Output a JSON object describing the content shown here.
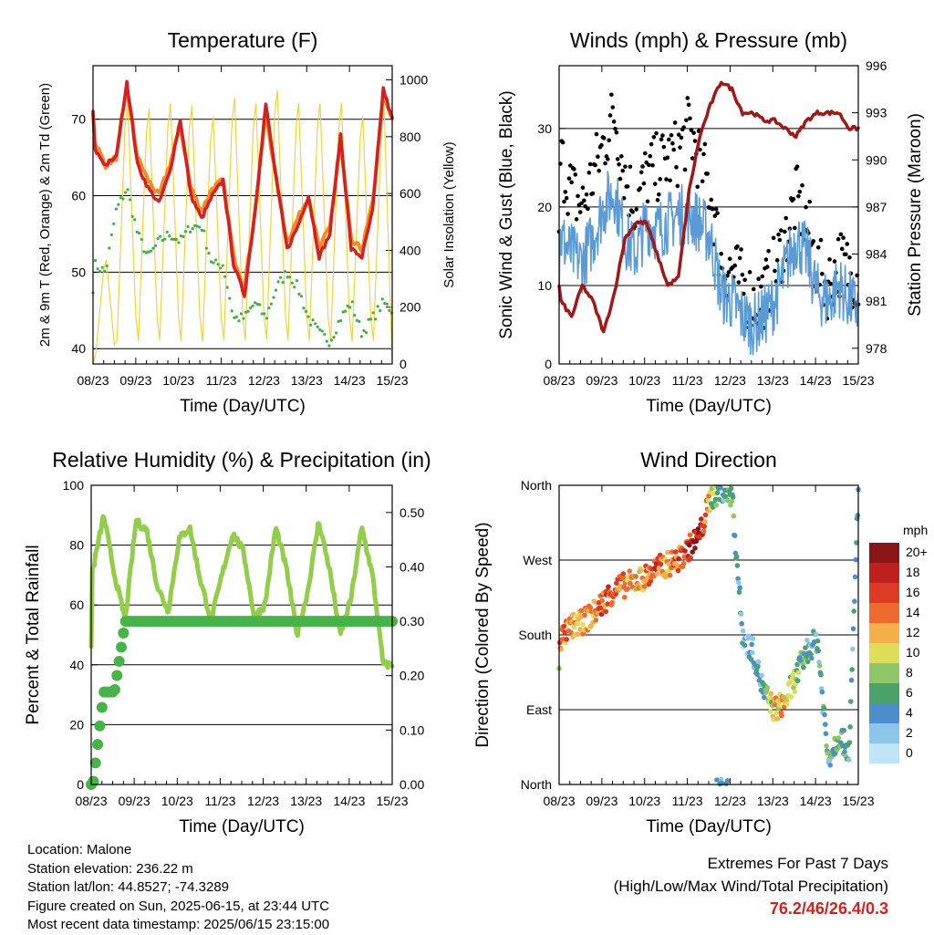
{
  "colors": {
    "temp2m": "#d42020",
    "temp9m": "#f08c28",
    "dewpoint": "#40b040",
    "solar": "#f5d23c",
    "wind": "#5b9bd5",
    "gust": "#000000",
    "pressure": "#a01818",
    "rh": "#94cd4c",
    "precip": "#46b446",
    "extremes": "#d42020"
  },
  "time_ticks": [
    "08/23",
    "09/23",
    "10/23",
    "11/23",
    "12/23",
    "13/23",
    "14/23",
    "15/23"
  ],
  "charts": {
    "temperature": {
      "title": "Temperature (F)",
      "xlabel": "Time (Day/UTC)",
      "ylabel_left": "2m & 9m T (Red, Orange) & 2m Td (Green)",
      "ylabel_right": "Solar Insolation (Yellow)",
      "left_ticks": [
        "40",
        "50",
        "60",
        "70"
      ],
      "right_ticks": [
        "0",
        "200",
        "400",
        "600",
        "800",
        "1000"
      ]
    },
    "winds": {
      "title": "Winds (mph) & Pressure (mb)",
      "xlabel": "Time (Day/UTC)",
      "ylabel_left": "Sonic Wind & Gust (Blue, Black)",
      "ylabel_right": "Station Pressure (Maroon)",
      "left_ticks": [
        "0",
        "10",
        "20",
        "30"
      ],
      "right_ticks": [
        "978",
        "981",
        "984",
        "987",
        "990",
        "993",
        "996"
      ]
    },
    "humidity": {
      "title": "Relative Humidity (%) & Precipitation (in)",
      "xlabel": "Time (Day/UTC)",
      "ylabel_left": "Percent & Total Rainfall",
      "left_ticks": [
        "0",
        "20",
        "40",
        "60",
        "80",
        "100"
      ],
      "right_ticks": [
        "0.00",
        "0.10",
        "0.20",
        "0.30",
        "0.40",
        "0.50"
      ]
    },
    "direction": {
      "title": "Wind Direction",
      "xlabel": "Time (Day/UTC)",
      "ylabel_left": "Direction (Colored By Speed)",
      "left_ticks": [
        "North",
        "East",
        "South",
        "West",
        "North"
      ],
      "legend_title": "mph",
      "legend_labels": [
        "0",
        "2",
        "4",
        "6",
        "8",
        "10",
        "12",
        "14",
        "16",
        "18",
        "20+"
      ]
    }
  },
  "chart_data": [
    {
      "type": "line",
      "title": "Temperature (F)",
      "xlabel": "Time (Day/UTC)",
      "x": [
        "08/23",
        "08/12",
        "09/00",
        "09/06",
        "09/12",
        "09/18",
        "10/00",
        "10/06",
        "10/12",
        "10/18",
        "11/00",
        "11/06",
        "11/12",
        "11/18",
        "12/00",
        "12/06",
        "12/12",
        "12/18",
        "13/00",
        "13/06",
        "13/12",
        "13/18",
        "14/00",
        "14/06",
        "14/12",
        "14/18",
        "15/00",
        "15/06",
        "15/12",
        "15/18",
        "15/23"
      ],
      "ylim": [
        38,
        77
      ],
      "y2lim": [
        0,
        1050
      ],
      "series": [
        {
          "name": "2m T",
          "axis": "left",
          "values": [
            71,
            64,
            66,
            64,
            65,
            75,
            64,
            61,
            59,
            63,
            70,
            60,
            57,
            60,
            62,
            51,
            47,
            58,
            72,
            62,
            53,
            56,
            60,
            52,
            55,
            68,
            53,
            52,
            58,
            74,
            70
          ]
        },
        {
          "name": "9m T",
          "axis": "left",
          "values": [
            71,
            65,
            67,
            64,
            65,
            74,
            65,
            62,
            60,
            64,
            69,
            61,
            58,
            61,
            62,
            52,
            48,
            58,
            71,
            62,
            54,
            57,
            60,
            53,
            56,
            67,
            54,
            53,
            59,
            73,
            70
          ]
        },
        {
          "name": "2m Td",
          "axis": "left",
          "values": [
            48,
            55,
            51,
            50,
            58,
            61,
            55,
            52,
            54,
            55,
            54,
            56,
            56,
            51,
            51,
            44,
            44,
            46,
            44,
            48,
            50,
            48,
            44,
            42,
            41,
            44,
            46,
            42,
            44,
            46,
            45
          ]
        },
        {
          "name": "Solar Insolation",
          "axis": "right",
          "values": [
            0,
            350,
            0,
            400,
            0,
            1000,
            0,
            980,
            0,
            1000,
            0,
            990,
            0,
            950,
            0,
            1020,
            0,
            1000,
            0,
            1050,
            0,
            1000,
            0,
            1000,
            0,
            1000,
            0,
            950,
            0,
            1000,
            0
          ]
        }
      ]
    },
    {
      "type": "line",
      "title": "Winds (mph) & Pressure (mb)",
      "xlabel": "Time (Day/UTC)",
      "x": [
        "08/23",
        "08/12",
        "09/00",
        "09/06",
        "09/12",
        "09/18",
        "10/00",
        "10/06",
        "10/12",
        "10/18",
        "11/00",
        "11/06",
        "11/12",
        "11/18",
        "12/00",
        "12/06",
        "12/12",
        "12/18",
        "13/00",
        "13/06",
        "13/12",
        "13/18",
        "14/00",
        "14/06",
        "14/12",
        "14/18",
        "15/00",
        "15/06",
        "15/12",
        "15/18",
        "15/23"
      ],
      "ylim": [
        0,
        38
      ],
      "y2lim": [
        977,
        996
      ],
      "series": [
        {
          "name": "Sonic Wind",
          "axis": "left",
          "values": [
            10,
            12,
            16,
            14,
            13,
            16,
            20,
            22,
            16,
            14,
            18,
            17,
            18,
            19,
            19,
            18,
            16,
            9,
            8,
            6,
            5,
            6,
            8,
            12,
            16,
            14,
            9,
            8,
            10,
            8,
            7
          ]
        },
        {
          "name": "Gust",
          "axis": "left",
          "values": [
            14,
            18,
            26,
            22,
            20,
            24,
            28,
            32,
            24,
            20,
            24,
            25,
            26,
            27,
            30,
            26,
            22,
            13,
            12,
            10,
            8,
            9,
            12,
            16,
            21,
            18,
            12,
            10,
            13,
            12,
            11
          ]
        },
        {
          "name": "Station Pressure",
          "axis": "right",
          "values": [
            982,
            981.5,
            981,
            980,
            982,
            981,
            979,
            981.5,
            985,
            986,
            986,
            984,
            982,
            982.5,
            988,
            991.5,
            993.5,
            995,
            994.5,
            993,
            993,
            992.5,
            992.5,
            992,
            991.5,
            992.5,
            993,
            993,
            993,
            992,
            992
          ]
        }
      ]
    },
    {
      "type": "line",
      "title": "Relative Humidity (%) & Precipitation (in)",
      "xlabel": "Time (Day/UTC)",
      "x": [
        "08/23",
        "08/12",
        "09/00",
        "09/06",
        "09/12",
        "09/18",
        "10/00",
        "10/06",
        "10/12",
        "10/18",
        "11/00",
        "11/06",
        "11/12",
        "11/18",
        "12/00",
        "12/06",
        "12/12",
        "12/18",
        "13/00",
        "13/06",
        "13/12",
        "13/18",
        "14/00",
        "14/06",
        "14/12",
        "14/18",
        "15/00",
        "15/06",
        "15/12",
        "15/18",
        "15/23"
      ],
      "ylim": [
        0,
        100
      ],
      "y2lim": [
        0,
        0.55
      ],
      "series": [
        {
          "name": "Relative Humidity",
          "axis": "left",
          "values": [
            46,
            68,
            72,
            90,
            70,
            55,
            88,
            85,
            66,
            58,
            82,
            86,
            68,
            55,
            70,
            84,
            78,
            56,
            60,
            86,
            72,
            50,
            65,
            88,
            72,
            50,
            62,
            86,
            70,
            40,
            40
          ]
        },
        {
          "name": "Total Precipitation",
          "axis": "right",
          "values": [
            0,
            0,
            0,
            0.17,
            0.17,
            0.3,
            0.3,
            0.3,
            0.3,
            0.3,
            0.3,
            0.3,
            0.3,
            0.3,
            0.3,
            0.3,
            0.3,
            0.3,
            0.3,
            0.3,
            0.3,
            0.3,
            0.3,
            0.3,
            0.3,
            0.3,
            0.3,
            0.3,
            0.3,
            0.3,
            0.3
          ]
        }
      ]
    },
    {
      "type": "scatter",
      "title": "Wind Direction",
      "xlabel": "Time (Day/UTC)",
      "ylabel": "Direction (Colored By Speed)",
      "x": [
        "08/23",
        "08/12",
        "09/00",
        "09/06",
        "09/12",
        "09/18",
        "10/00",
        "10/06",
        "10/12",
        "10/18",
        "11/00",
        "11/06",
        "11/12",
        "11/18",
        "12/00",
        "12/06",
        "12/12",
        "12/18",
        "13/00",
        "13/06",
        "13/12",
        "13/18",
        "14/00",
        "14/06",
        "14/12",
        "14/18",
        "15/00",
        "15/06",
        "15/12",
        "15/18",
        "15/23"
      ],
      "ylim": [
        0,
        360
      ],
      "direction_deg": [
        150,
        165,
        175,
        190,
        195,
        205,
        220,
        235,
        240,
        245,
        250,
        260,
        265,
        270,
        285,
        300,
        345,
        355,
        350,
        180,
        160,
        110,
        90,
        100,
        130,
        160,
        175,
        30,
        60,
        40,
        355
      ],
      "speed_mph": [
        8,
        12,
        14,
        14,
        12,
        14,
        16,
        16,
        14,
        12,
        14,
        16,
        14,
        16,
        18,
        20,
        10,
        6,
        8,
        4,
        4,
        6,
        12,
        12,
        8,
        6,
        6,
        6,
        8,
        6,
        6
      ]
    }
  ],
  "info": {
    "location": "Location: Malone",
    "elevation": "Station elevation: 236.22 m",
    "latlon": "Station lat/lon: 44.8527; -74.3289",
    "created": "Figure created on Sun, 2025-06-15, at 23:44 UTC",
    "recent": "Most recent data timestamp: 2025/06/15 23:15:00"
  },
  "extremes": {
    "line1": "Extremes For Past 7 Days",
    "line2": "(High/Low/Max Wind/Total Precipitation)",
    "values": "76.2/46/26.4/0.3"
  }
}
